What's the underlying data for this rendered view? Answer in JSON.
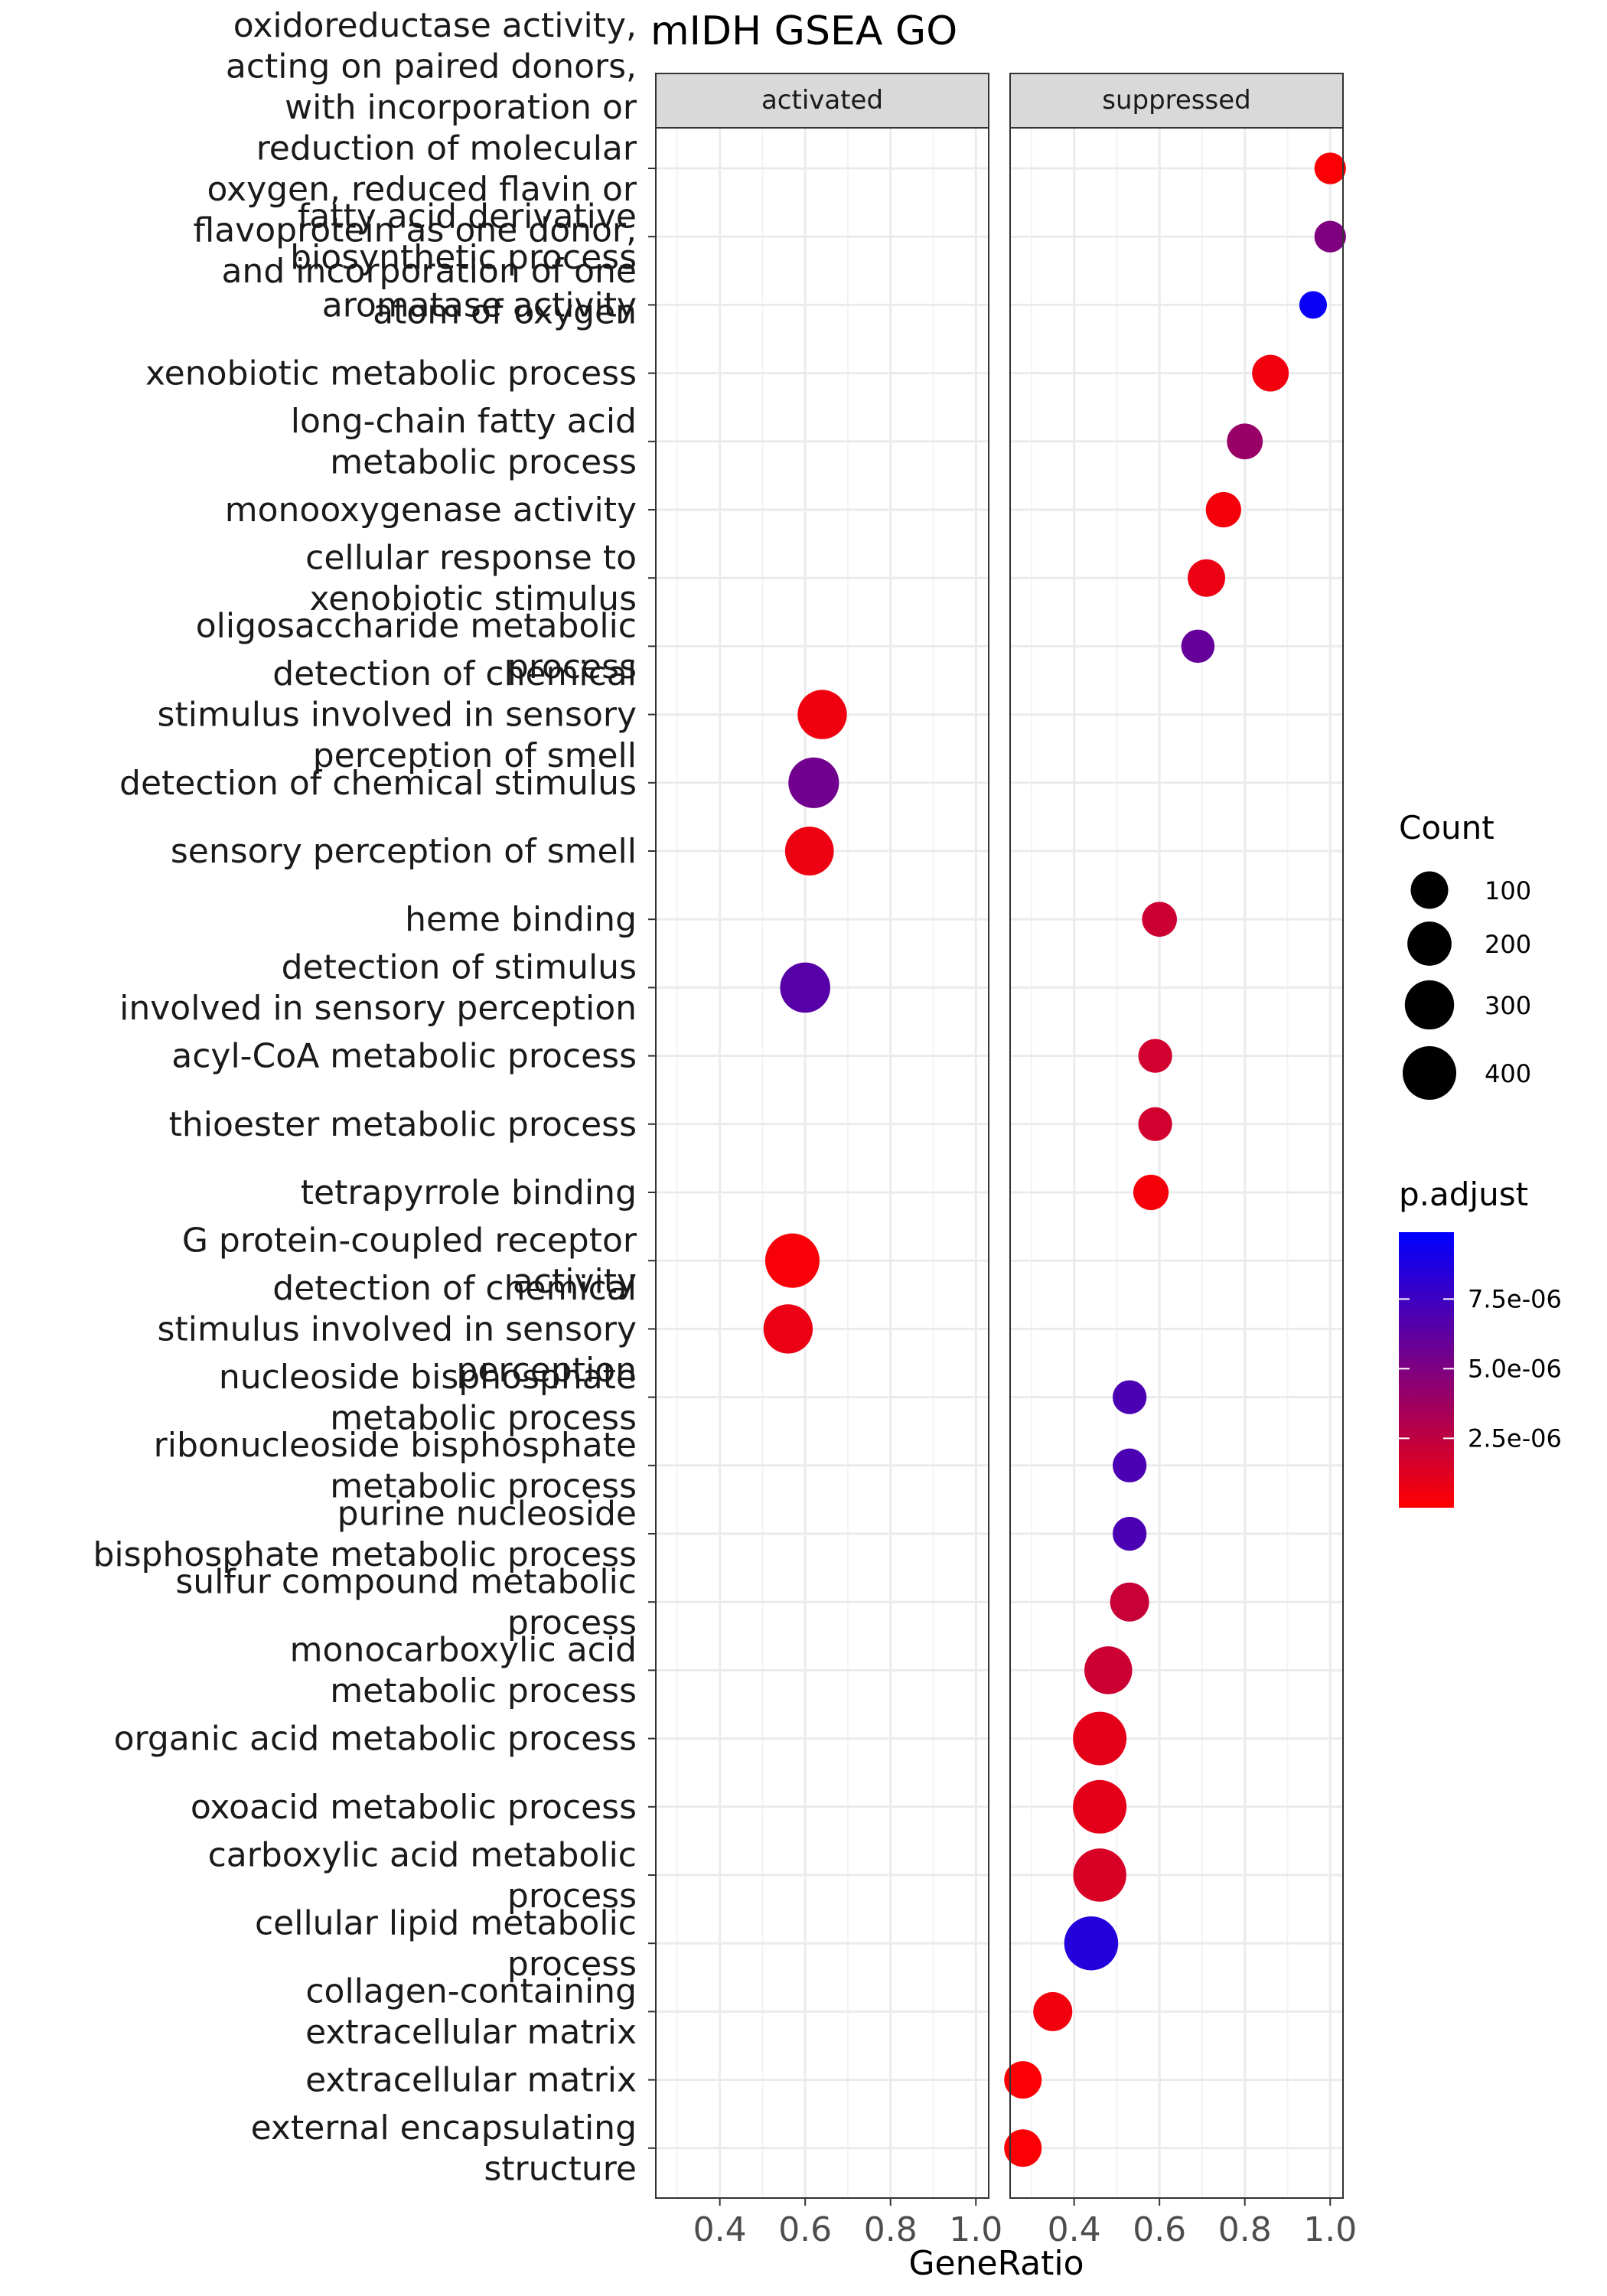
{
  "chart_data": {
    "type": "scatter",
    "title": "mIDH GSEA GO",
    "xlabel": "GeneRatio",
    "ylabel": "",
    "xlim": [
      0.25,
      1.03
    ],
    "x_ticks": [
      "0.4",
      "0.6",
      "0.8",
      "1.0"
    ],
    "grid": true,
    "legend_position": "right",
    "facets": [
      "activated",
      "suppressed"
    ],
    "categories": [
      "oxidoreductase activity, acting on paired donors, with incorporation or reduction of molecular oxygen, reduced flavin or flavoprotein as one donor, and incorporation of one atom of oxygen",
      "fatty acid derivative biosynthetic process",
      "aromatase activity",
      "xenobiotic metabolic process",
      "long-chain fatty acid metabolic process",
      "monooxygenase activity",
      "cellular response to xenobiotic stimulus",
      "oligosaccharide metabolic process",
      "detection of chemical stimulus involved in sensory perception of smell",
      "detection of chemical stimulus",
      "sensory perception of smell",
      "heme binding",
      "detection of stimulus involved in sensory perception",
      "acyl-CoA metabolic process",
      "thioester metabolic process",
      "tetrapyrrole binding",
      "G protein-coupled receptor activity",
      "detection of chemical stimulus involved in sensory perception",
      "nucleoside bisphosphate metabolic process",
      "ribonucleoside bisphosphate metabolic process",
      "purine nucleoside bisphosphate metabolic process",
      "sulfur compound metabolic process",
      "monocarboxylic acid metabolic process",
      "organic acid metabolic process",
      "oxoacid metabolic process",
      "carboxylic acid metabolic process",
      "cellular lipid metabolic process",
      "collagen-containing extracellular matrix",
      "extracellular matrix",
      "external encapsulating structure"
    ],
    "category_lines": [
      [
        "oxidoreductase activity,",
        "acting on paired donors,",
        "with incorporation or",
        "reduction of molecular",
        "oxygen, reduced flavin or",
        "flavoprotein as one donor,",
        "and incorporation of one",
        "atom of oxygen"
      ],
      [
        "fatty acid derivative",
        "biosynthetic process"
      ],
      [
        "aromatase activity"
      ],
      [
        "xenobiotic metabolic process"
      ],
      [
        "long-chain fatty acid",
        "metabolic process"
      ],
      [
        "monooxygenase activity"
      ],
      [
        "cellular response to",
        "xenobiotic stimulus"
      ],
      [
        "oligosaccharide metabolic",
        "process"
      ],
      [
        "detection of chemical",
        "stimulus involved in sensory",
        "perception of smell"
      ],
      [
        "detection of chemical stimulus"
      ],
      [
        "sensory perception of smell"
      ],
      [
        "heme binding"
      ],
      [
        "detection of stimulus",
        "involved in sensory perception"
      ],
      [
        "acyl-CoA metabolic process"
      ],
      [
        "thioester metabolic process"
      ],
      [
        "tetrapyrrole binding"
      ],
      [
        "G protein-coupled receptor",
        "activity"
      ],
      [
        "detection of chemical",
        "stimulus involved in sensory",
        "perception"
      ],
      [
        "nucleoside bisphosphate",
        "metabolic process"
      ],
      [
        "ribonucleoside bisphosphate",
        "metabolic process"
      ],
      [
        "purine nucleoside",
        "bisphosphate metabolic process"
      ],
      [
        "sulfur compound metabolic",
        "process"
      ],
      [
        "monocarboxylic acid",
        "metabolic process"
      ],
      [
        "organic acid metabolic process"
      ],
      [
        "oxoacid metabolic process"
      ],
      [
        "carboxylic acid metabolic",
        "process"
      ],
      [
        "cellular lipid metabolic",
        "process"
      ],
      [
        "collagen-containing",
        "extracellular matrix"
      ],
      [
        "extracellular matrix"
      ],
      [
        "external encapsulating",
        "structure"
      ]
    ],
    "points": [
      {
        "facet": "suppressed",
        "category": 0,
        "x": 1.0,
        "count": 40,
        "p_adjust": 2e-07
      },
      {
        "facet": "suppressed",
        "category": 1,
        "x": 1.0,
        "count": 40,
        "p_adjust": 5e-06
      },
      {
        "facet": "suppressed",
        "category": 2,
        "x": 0.96,
        "count": 15,
        "p_adjust": 9.5e-06
      },
      {
        "facet": "suppressed",
        "category": 3,
        "x": 0.86,
        "count": 90,
        "p_adjust": 5e-07
      },
      {
        "facet": "suppressed",
        "category": 4,
        "x": 0.8,
        "count": 80,
        "p_adjust": 4e-06
      },
      {
        "facet": "suppressed",
        "category": 5,
        "x": 0.75,
        "count": 75,
        "p_adjust": 4e-07
      },
      {
        "facet": "suppressed",
        "category": 6,
        "x": 0.71,
        "count": 100,
        "p_adjust": 8e-07
      },
      {
        "facet": "suppressed",
        "category": 7,
        "x": 0.69,
        "count": 55,
        "p_adjust": 6e-06
      },
      {
        "facet": "activated",
        "category": 8,
        "x": 0.64,
        "count": 300,
        "p_adjust": 6e-07
      },
      {
        "facet": "activated",
        "category": 9,
        "x": 0.62,
        "count": 330,
        "p_adjust": 5.5e-06
      },
      {
        "facet": "activated",
        "category": 10,
        "x": 0.61,
        "count": 290,
        "p_adjust": 7e-07
      },
      {
        "facet": "suppressed",
        "category": 11,
        "x": 0.6,
        "count": 70,
        "p_adjust": 2e-06
      },
      {
        "facet": "activated",
        "category": 12,
        "x": 0.6,
        "count": 320,
        "p_adjust": 6.5e-06
      },
      {
        "facet": "suppressed",
        "category": 13,
        "x": 0.59,
        "count": 60,
        "p_adjust": 1.8e-06
      },
      {
        "facet": "suppressed",
        "category": 14,
        "x": 0.59,
        "count": 60,
        "p_adjust": 1.8e-06
      },
      {
        "facet": "suppressed",
        "category": 15,
        "x": 0.58,
        "count": 75,
        "p_adjust": 4e-07
      },
      {
        "facet": "activated",
        "category": 16,
        "x": 0.57,
        "count": 420,
        "p_adjust": 3e-07
      },
      {
        "facet": "activated",
        "category": 17,
        "x": 0.56,
        "count": 300,
        "p_adjust": 8e-07
      },
      {
        "facet": "suppressed",
        "category": 18,
        "x": 0.53,
        "count": 60,
        "p_adjust": 7e-06
      },
      {
        "facet": "suppressed",
        "category": 19,
        "x": 0.53,
        "count": 60,
        "p_adjust": 7e-06
      },
      {
        "facet": "suppressed",
        "category": 20,
        "x": 0.53,
        "count": 60,
        "p_adjust": 7e-06
      },
      {
        "facet": "suppressed",
        "category": 21,
        "x": 0.53,
        "count": 120,
        "p_adjust": 2.2e-06
      },
      {
        "facet": "suppressed",
        "category": 22,
        "x": 0.48,
        "count": 270,
        "p_adjust": 2e-06
      },
      {
        "facet": "suppressed",
        "category": 23,
        "x": 0.46,
        "count": 400,
        "p_adjust": 1e-06
      },
      {
        "facet": "suppressed",
        "category": 24,
        "x": 0.46,
        "count": 400,
        "p_adjust": 1e-06
      },
      {
        "facet": "suppressed",
        "category": 25,
        "x": 0.46,
        "count": 390,
        "p_adjust": 1.5e-06
      },
      {
        "facet": "suppressed",
        "category": 26,
        "x": 0.44,
        "count": 410,
        "p_adjust": 8.5e-06
      },
      {
        "facet": "suppressed",
        "category": 27,
        "x": 0.35,
        "count": 120,
        "p_adjust": 5e-07
      },
      {
        "facet": "suppressed",
        "category": 28,
        "x": 0.28,
        "count": 100,
        "p_adjust": 2e-07
      },
      {
        "facet": "suppressed",
        "category": 29,
        "x": 0.28,
        "count": 100,
        "p_adjust": 2e-07
      }
    ],
    "size_legend": {
      "title": "Count",
      "values": [
        100,
        200,
        300,
        400
      ],
      "labels": [
        "100",
        "200",
        "300",
        "400"
      ]
    },
    "color_legend": {
      "title": "p.adjust",
      "range": [
        1e-08,
        9.9e-06
      ],
      "tick_values": [
        7.5e-06,
        5e-06,
        2.5e-06
      ],
      "tick_labels": [
        "7.5e-06",
        "5.0e-06",
        "2.5e-06"
      ],
      "low_color": "#ff0000",
      "high_color": "#0000ff"
    },
    "colors": {
      "strip_fill": "#d9d9d9",
      "panel_border": "#333333",
      "grid": "#ebebeb"
    }
  }
}
